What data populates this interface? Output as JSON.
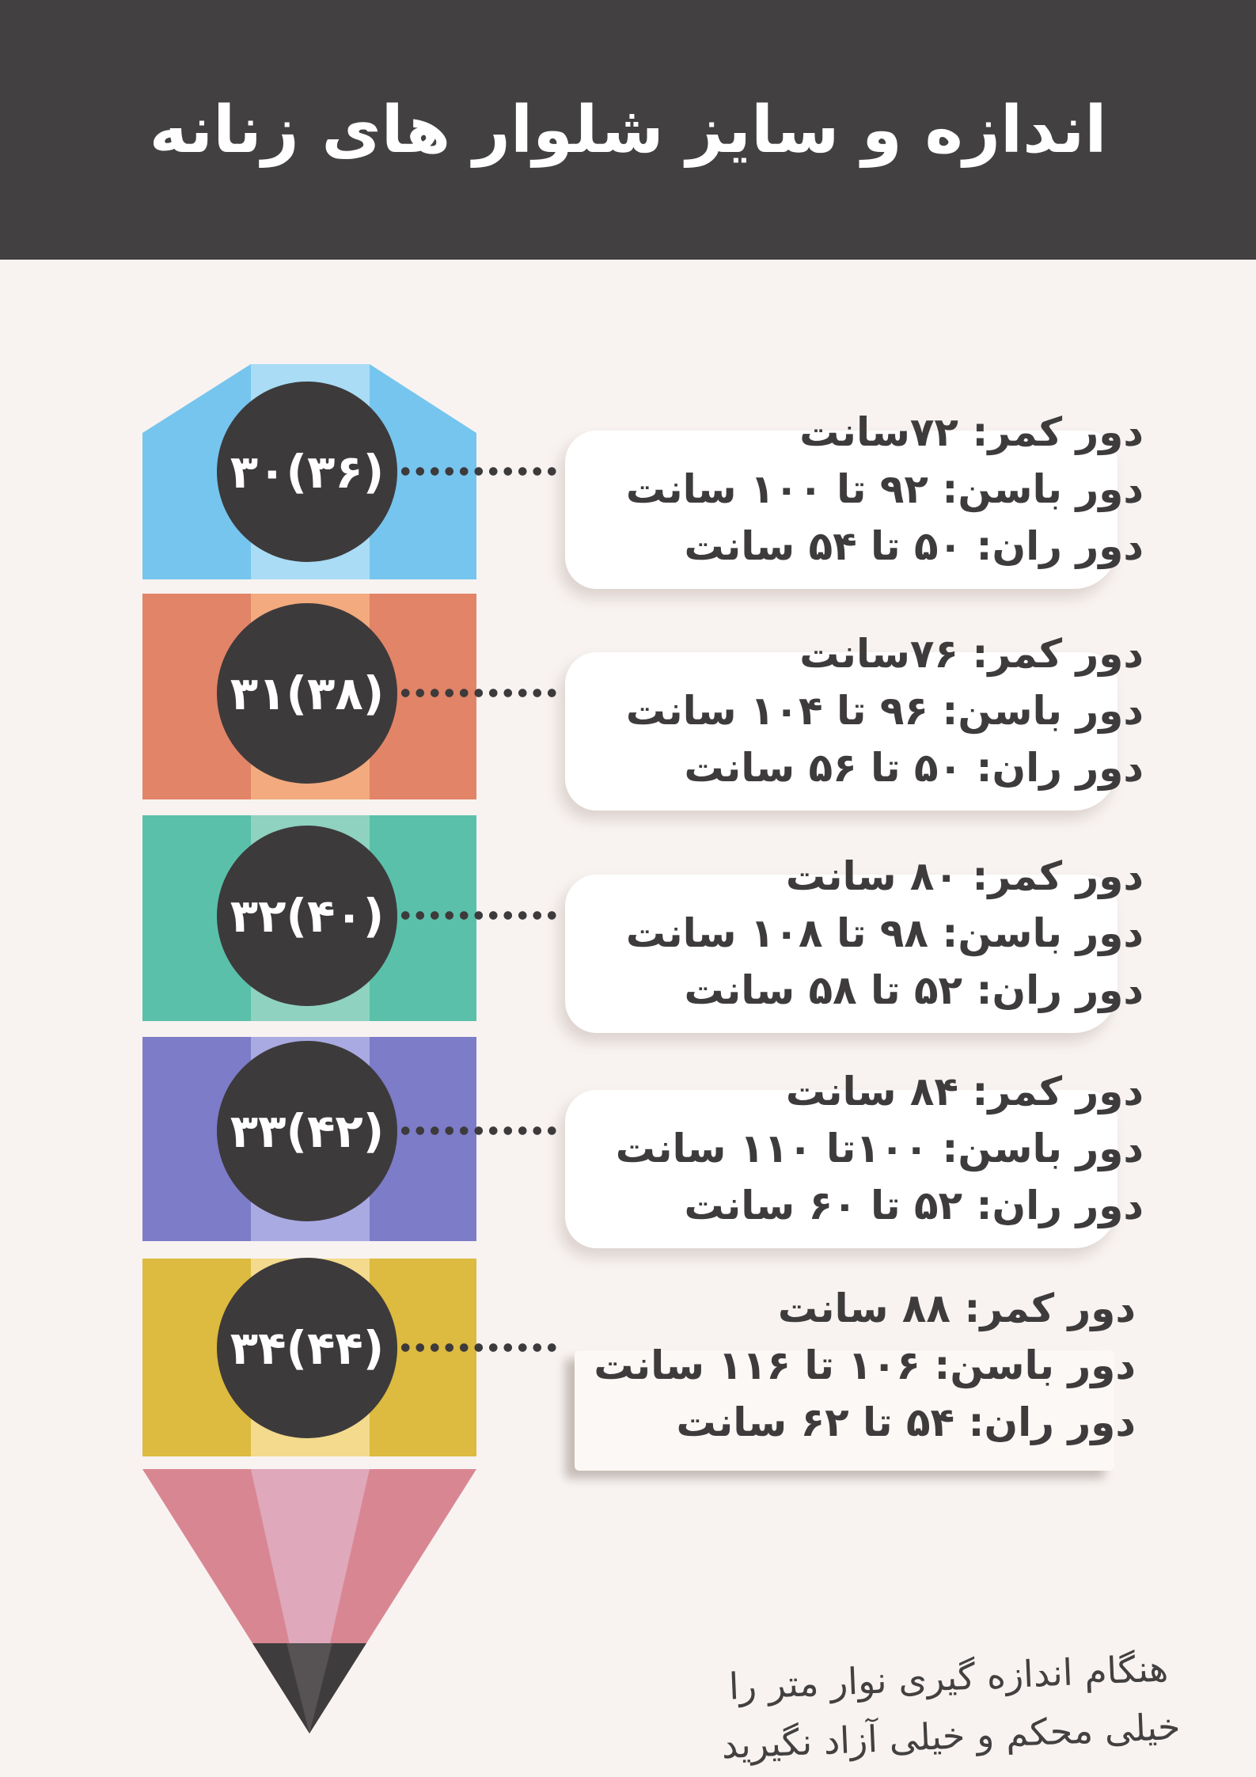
{
  "header": {
    "title": "اندازه و سایز شلوار های زنانه"
  },
  "rows": [
    {
      "size_label": "۳۰(۳۶)",
      "waist": "دور کمر:  ۷۲سانت",
      "hips": "دور باسن:  ۹۲ تا ۱۰۰ سانت",
      "thigh": "دور ران:  ۵۰ تا ۵۴ سانت",
      "color_side": "#76c5ee",
      "color_light": "#aadcf5"
    },
    {
      "size_label": "۳۱(۳۸)",
      "waist": "دور کمر:  ۷۶سانت",
      "hips": "دور باسن:  ۹۶ تا ۱۰۴ سانت",
      "thigh": "دور ران:  ۵۰ تا ۵۶ سانت",
      "color_side": "#e28467",
      "color_light": "#f3aa7e"
    },
    {
      "size_label": "۳۲(۴۰)",
      "waist": "دور کمر:  ۸۰ سانت",
      "hips": "دور باسن:  ۹۸ تا ۱۰۸ سانت",
      "thigh": "دور ران:  ۵۲ تا ۵۸ سانت",
      "color_side": "#5bc0a9",
      "color_light": "#8fd2c0"
    },
    {
      "size_label": "۳۳(۴۲)",
      "waist": "دور کمر:  ۸۴ سانت",
      "hips": "دور باسن:  ۱۰۰تا ۱۱۰ سانت",
      "thigh": "دور ران:  ۵۲ تا ۶۰ سانت",
      "color_side": "#7d7cc8",
      "color_light": "#aaaae2"
    },
    {
      "size_label": "۳۴(۴۴)",
      "waist": "دور کمر:  ۸۸ سانت",
      "hips": "دور باسن:  ۱۰۶ تا ۱۱۶ سانت",
      "thigh": "دور ران:  ۵۴ تا ۶۲ سانت",
      "color_side": "#ddba40",
      "color_light": "#f3da8d"
    }
  ],
  "pencil": {
    "tip_color_side": "#d98693",
    "tip_color_light": "#dfa9bb",
    "graphite_color": "#3f3c3d",
    "graphite_light": "#575254"
  },
  "footer": {
    "note_line1": "هنگام اندازه گیری نوار متر را",
    "note_line2": "خیلی محکم و خیلی آزاد نگیرید"
  },
  "colors": {
    "background": "#f8f3f1",
    "header_bg": "#424041",
    "circle": "#3d3a3b",
    "text": "#3e3b3c",
    "bubble": "#ffffff",
    "bubble_last": "#fcf8f6"
  }
}
